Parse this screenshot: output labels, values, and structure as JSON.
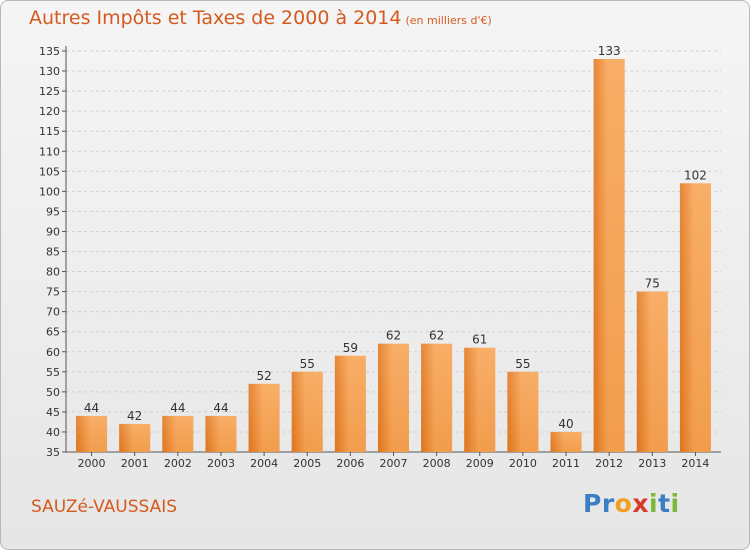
{
  "header": {
    "title": "Autres Impôts et Taxes de 2000 à 2014",
    "unit": "(en milliers d'€)"
  },
  "footer": {
    "commune": "SAUZé-VAUSSAIS",
    "logo_letters": [
      "P",
      "r",
      "o",
      "x",
      "i",
      "t",
      "i"
    ],
    "logo_colors": [
      "#3b7ec6",
      "#3b7ec6",
      "#f0a020",
      "#d83a2a",
      "#7ab73a",
      "#3b7ec6",
      "#7ab73a"
    ]
  },
  "colors": {
    "bar_light": "#f8ad62",
    "bar_dark": "#d96f18",
    "grid": "#d0d0d0",
    "axis": "#555555",
    "text": "#333333"
  },
  "chart_data": {
    "type": "bar",
    "categories": [
      "2000",
      "2001",
      "2002",
      "2003",
      "2004",
      "2005",
      "2006",
      "2007",
      "2008",
      "2009",
      "2010",
      "2011",
      "2012",
      "2013",
      "2014"
    ],
    "values": [
      44,
      42,
      44,
      44,
      52,
      55,
      59,
      62,
      62,
      61,
      55,
      40,
      133,
      75,
      102
    ],
    "data_labels": [
      "44",
      "42",
      "44",
      "44",
      "52",
      "55",
      "59",
      "62",
      "62",
      "61",
      "55",
      "40",
      "133",
      "75",
      "102"
    ],
    "y_ticks": [
      "35",
      "40",
      "45",
      "50",
      "55",
      "60",
      "65",
      "70",
      "75",
      "80",
      "85",
      "90",
      "95",
      "100",
      "105",
      "110",
      "115",
      "120",
      "125",
      "130",
      "135"
    ],
    "title": "Autres Impôts et Taxes de 2000 à 2014",
    "xlabel": "",
    "ylabel": "",
    "ylim": [
      35,
      135
    ],
    "grid": true,
    "legend": "none"
  }
}
